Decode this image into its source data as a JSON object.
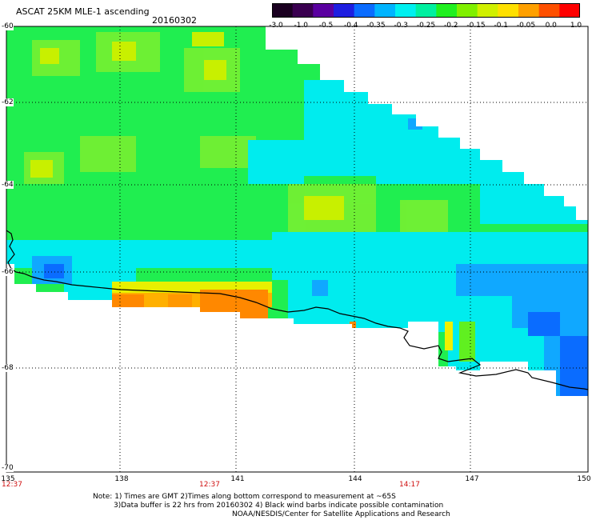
{
  "header": {
    "title": "ASCAT 25KM MLE-1 ascending",
    "date": "20160302"
  },
  "colorbar": {
    "ticks": [
      "-3.0",
      "-1.0",
      "-0.5",
      "-0.4",
      "-0.35",
      "-0.3",
      "-0.25",
      "-0.2",
      "-0.15",
      "-0.1",
      "-0.05",
      "0.0",
      "1.0"
    ],
    "colors": [
      "#1a0020",
      "#3a0050",
      "#5a00a0",
      "#1e1ee0",
      "#0a6cff",
      "#00b4ff",
      "#00f0f0",
      "#00f0a0",
      "#20f020",
      "#80f000",
      "#d0f000",
      "#ffe000",
      "#ffa000",
      "#ff5000",
      "#ff0000"
    ]
  },
  "map": {
    "lat_labels": [
      "-60",
      "-62",
      "-64",
      "-66",
      "-68",
      "-70"
    ],
    "lon_labels": [
      "135",
      "138",
      "141",
      "144",
      "147",
      "150"
    ],
    "time_labels": [
      "12:37",
      "12:37",
      "14:17"
    ]
  },
  "notes": [
    "Note: 1) Times are GMT 2)Times along bottom correspond to measurement at ~65S",
    "3)Data buffer is 22 hrs from 20160302 4) Black wind barbs indicate possible contamination",
    "NOAA/NESDIS/Center for Satellite Applications and Research"
  ]
}
